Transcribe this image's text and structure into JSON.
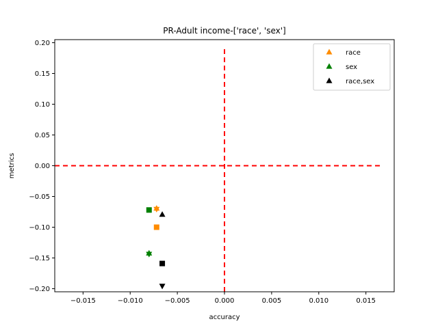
{
  "chart_data": {
    "type": "scatter",
    "title": "PR-Adult income-['race', 'sex']",
    "xlabel": "accuracy",
    "ylabel": "metrics",
    "xlim": [
      -0.018,
      0.018
    ],
    "ylim": [
      -0.205,
      0.205
    ],
    "xticks": [
      -0.015,
      -0.01,
      -0.005,
      0.0,
      0.005,
      0.01,
      0.015
    ],
    "xtick_labels": [
      "−0.015",
      "−0.010",
      "−0.005",
      "0.000",
      "0.005",
      "0.010",
      "0.015"
    ],
    "yticks": [
      0.2,
      0.15,
      0.1,
      0.05,
      0.0,
      -0.05,
      -0.1,
      -0.15,
      -0.2
    ],
    "ytick_labels": [
      "0.20",
      "0.15",
      "0.10",
      "0.05",
      "0.00",
      "−0.05",
      "−0.10",
      "−0.15",
      "−0.20"
    ],
    "grid": false,
    "legend_position": "top-right",
    "reference_lines": [
      {
        "orientation": "vertical",
        "value": 0.0,
        "color": "#ff0000",
        "style": "dashed"
      },
      {
        "orientation": "horizontal",
        "value": 0.0,
        "color": "#ff0000",
        "style": "dashed"
      }
    ],
    "series": [
      {
        "name": "race",
        "color": "#ff8c00",
        "points": [
          {
            "x": -0.0072,
            "y": -0.069,
            "marker": "triangle-up"
          },
          {
            "x": -0.0072,
            "y": -0.071,
            "marker": "triangle-down"
          },
          {
            "x": -0.0072,
            "y": -0.1,
            "marker": "square"
          }
        ]
      },
      {
        "name": "sex",
        "color": "#008000",
        "points": [
          {
            "x": -0.008,
            "y": -0.072,
            "marker": "square"
          },
          {
            "x": -0.008,
            "y": -0.142,
            "marker": "triangle-up"
          },
          {
            "x": -0.008,
            "y": -0.144,
            "marker": "triangle-down"
          }
        ]
      },
      {
        "name": "race,sex",
        "color": "#000000",
        "points": [
          {
            "x": -0.0066,
            "y": -0.079,
            "marker": "triangle-up"
          },
          {
            "x": -0.0066,
            "y": -0.159,
            "marker": "square"
          },
          {
            "x": -0.0066,
            "y": -0.196,
            "marker": "triangle-down"
          }
        ]
      }
    ]
  }
}
